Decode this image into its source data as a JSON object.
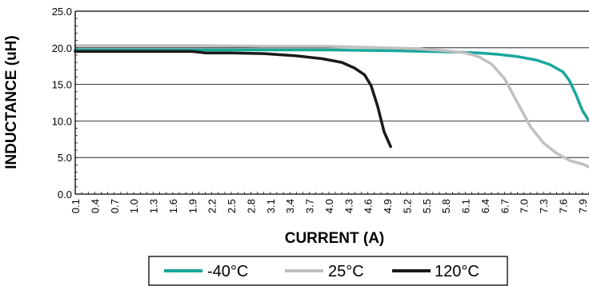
{
  "chart_data": {
    "type": "line",
    "xlabel": "CURRENT (A)",
    "ylabel": "INDUCTANCE (uH)",
    "ylim": [
      0,
      25
    ],
    "xlim": [
      0.1,
      8.0
    ],
    "y_ticks": [
      "0.0",
      "5.0",
      "10.0",
      "15.0",
      "20.0",
      "25.0"
    ],
    "x_ticks": [
      "0.1",
      "0.4",
      "0.7",
      "1.0",
      "1.3",
      "1.6",
      "1.9",
      "2.2",
      "2.5",
      "2.8",
      "3.1",
      "3.4",
      "3.7",
      "4.0",
      "4.3",
      "4.6",
      "4.9",
      "5.2",
      "5.5",
      "5.8",
      "6.1",
      "6.4",
      "6.7",
      "7.0",
      "7.3",
      "7.6",
      "7.9"
    ],
    "grid": "horizontal",
    "legend_position": "bottom",
    "series": [
      {
        "name": "-40°C",
        "color": "#1aa79c",
        "points": [
          [
            0.1,
            19.7
          ],
          [
            1.0,
            19.7
          ],
          [
            2.0,
            19.7
          ],
          [
            3.0,
            19.7
          ],
          [
            4.0,
            19.7
          ],
          [
            5.0,
            19.6
          ],
          [
            5.5,
            19.5
          ],
          [
            6.0,
            19.4
          ],
          [
            6.3,
            19.3
          ],
          [
            6.6,
            19.1
          ],
          [
            6.9,
            18.8
          ],
          [
            7.2,
            18.3
          ],
          [
            7.4,
            17.7
          ],
          [
            7.6,
            16.7
          ],
          [
            7.7,
            15.5
          ],
          [
            7.8,
            13.6
          ],
          [
            7.9,
            11.4
          ],
          [
            8.0,
            10.0
          ]
        ]
      },
      {
        "name": "25°C",
        "color": "#c0c0c0",
        "points": [
          [
            0.1,
            20.3
          ],
          [
            1.0,
            20.3
          ],
          [
            2.0,
            20.3
          ],
          [
            3.0,
            20.2
          ],
          [
            4.0,
            20.2
          ],
          [
            4.8,
            20.0
          ],
          [
            5.3,
            19.9
          ],
          [
            5.8,
            19.6
          ],
          [
            6.1,
            19.3
          ],
          [
            6.3,
            18.8
          ],
          [
            6.5,
            17.8
          ],
          [
            6.7,
            15.8
          ],
          [
            6.9,
            12.5
          ],
          [
            7.1,
            9.2
          ],
          [
            7.3,
            7.0
          ],
          [
            7.5,
            5.6
          ],
          [
            7.7,
            4.6
          ],
          [
            7.9,
            4.1
          ],
          [
            8.0,
            3.7
          ]
        ]
      },
      {
        "name": "120°C",
        "color": "#1a1a1a",
        "points": [
          [
            0.1,
            19.5
          ],
          [
            1.0,
            19.5
          ],
          [
            1.9,
            19.5
          ],
          [
            2.1,
            19.3
          ],
          [
            2.5,
            19.3
          ],
          [
            3.0,
            19.2
          ],
          [
            3.5,
            18.9
          ],
          [
            3.9,
            18.5
          ],
          [
            4.2,
            18.0
          ],
          [
            4.4,
            17.2
          ],
          [
            4.55,
            16.3
          ],
          [
            4.65,
            14.8
          ],
          [
            4.75,
            12.0
          ],
          [
            4.85,
            8.5
          ],
          [
            4.95,
            6.5
          ]
        ]
      }
    ]
  }
}
